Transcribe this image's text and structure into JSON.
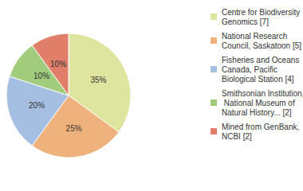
{
  "chart_data": {
    "type": "pie",
    "categories": [
      "Centre for Biodiversity Genomics [7]",
      "National Research Council, Saskatoon [5]",
      "Fisheries and Oceans Canada, Pacific Biological Station [4]",
      "Smithsonian Institution, National Museum of Natural History... [2]",
      "Mined from GenBank, NCBI [2]"
    ],
    "values": [
      35,
      25,
      20,
      10,
      10
    ],
    "value_labels": [
      "35%",
      "25%",
      "20%",
      "10%",
      "10%"
    ],
    "colors": [
      "#dde59f",
      "#f0b27c",
      "#a4bfe2",
      "#a0cc7c",
      "#e07e6a"
    ],
    "data_labels": true,
    "legend": "right"
  }
}
